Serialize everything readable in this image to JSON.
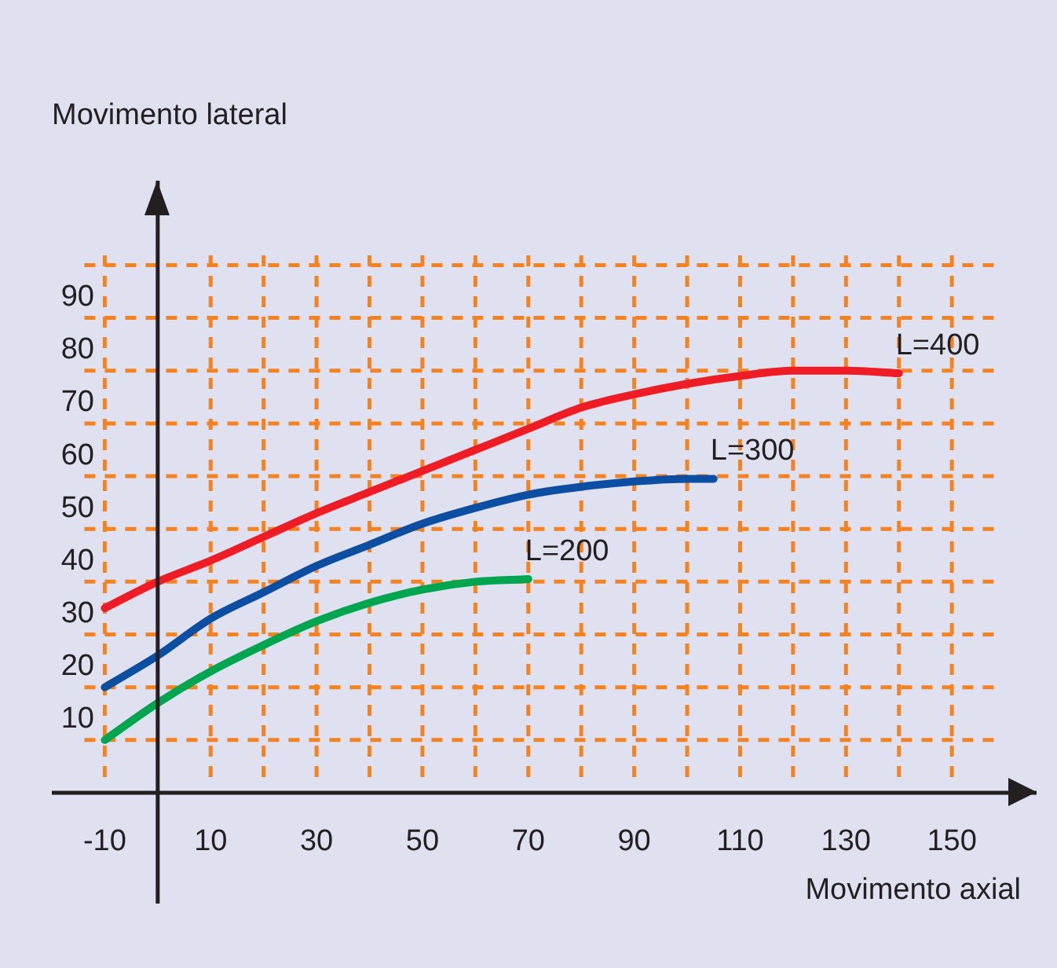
{
  "chart_data": {
    "type": "line",
    "xlabel": "Movimento axial",
    "ylabel": "Movimento lateral",
    "xlim": [
      -20,
      166
    ],
    "ylim": [
      -21,
      116
    ],
    "xticks": [
      -10,
      10,
      {
        "value": 20,
        "label": null
      },
      30,
      {
        "value": 40,
        "label": null
      },
      50,
      {
        "value": 60,
        "label": null
      },
      70,
      {
        "value": 80,
        "label": null
      },
      90,
      {
        "value": 100,
        "label": null
      },
      110,
      {
        "value": 120,
        "label": null
      },
      130,
      {
        "value": 140,
        "label": null
      },
      150
    ],
    "yticks": [
      10,
      20,
      30,
      40,
      50,
      60,
      70,
      80,
      90,
      {
        "value": 100,
        "label": null
      }
    ],
    "grid": true,
    "series": [
      {
        "name": "L=400",
        "color": "#ee1c25",
        "x": [
          -10,
          0,
          10,
          20,
          30,
          40,
          50,
          60,
          70,
          80,
          90,
          100,
          110,
          120,
          130,
          140
        ],
        "values": [
          35,
          40,
          44,
          48.5,
          53,
          57,
          61,
          65,
          69,
          73,
          75.5,
          77.5,
          79,
          80,
          80,
          79.5
        ]
      },
      {
        "name": "L=300",
        "color": "#0b4ea2",
        "x": [
          -10,
          0,
          10,
          20,
          30,
          40,
          50,
          60,
          70,
          80,
          90,
          100,
          105
        ],
        "values": [
          20,
          26,
          33,
          38,
          43,
          47,
          51,
          54,
          56.5,
          58,
          59,
          59.5,
          59.5
        ]
      },
      {
        "name": "L=200",
        "color": "#00a64f",
        "x": [
          -10,
          0,
          10,
          20,
          30,
          40,
          50,
          60,
          70
        ],
        "values": [
          10,
          17,
          23,
          28,
          32.5,
          36,
          38.5,
          40,
          40.5
        ]
      }
    ]
  }
}
